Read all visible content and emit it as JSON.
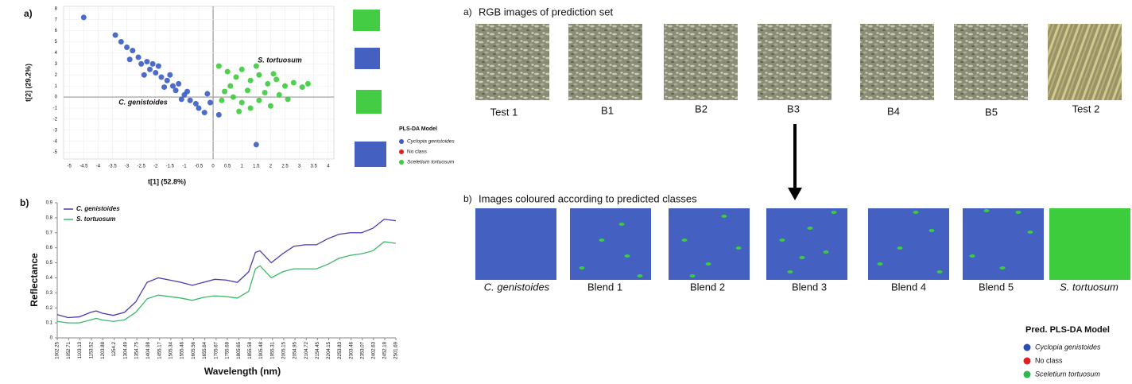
{
  "chart_data": [
    {
      "type": "scatter",
      "panel_label": "a)",
      "xlabel": "t[1] (52.8%)",
      "ylabel": "t[2] (29.2%)",
      "xlim": [
        -5.2,
        4.2
      ],
      "ylim": [
        -5.6,
        8.2
      ],
      "xticks": [
        -5,
        -4.5,
        -4,
        -3.5,
        -3,
        -2.5,
        -2,
        -1.5,
        -1,
        -0.5,
        0,
        0.5,
        1,
        1.5,
        2,
        2.5,
        3,
        3.5,
        4
      ],
      "yticks": [
        -5,
        -4,
        -3,
        -2,
        -1,
        0,
        1,
        2,
        3,
        4,
        5,
        6,
        7,
        8
      ],
      "grid": true,
      "annotations": [
        "C. genistoides",
        "S. tortuosum"
      ],
      "legend_title": "PLS-DA Model",
      "series": [
        {
          "name": "Cyclopia genistoides",
          "color": "#3a5cc4",
          "x": [
            -3.4,
            -3.2,
            -3.0,
            -2.8,
            -2.6,
            -2.5,
            -2.3,
            -2.2,
            -2.0,
            -1.9,
            -1.8,
            -1.6,
            -1.5,
            -1.4,
            -1.3,
            -1.2,
            -1.0,
            -0.9,
            -0.8,
            -0.6,
            -0.5,
            -0.3,
            -0.1,
            0.2,
            -2.9,
            -1.7,
            -2.4,
            -0.2,
            -4.5,
            1.5,
            -1.1,
            -2.1
          ],
          "y": [
            5.6,
            5.0,
            4.5,
            4.2,
            3.6,
            3.0,
            3.2,
            2.5,
            2.2,
            2.8,
            1.8,
            1.5,
            2.0,
            1.0,
            0.6,
            1.2,
            0.2,
            0.5,
            -0.3,
            -0.6,
            -1.0,
            -1.4,
            -0.5,
            -1.6,
            3.4,
            0.9,
            2.0,
            0.3,
            7.2,
            -4.3,
            -0.2,
            3.0
          ]
        },
        {
          "name": "No class",
          "color": "#e02020",
          "x": [],
          "y": []
        },
        {
          "name": "Sceletium tortuosum",
          "color": "#3ccc3c",
          "x": [
            0.2,
            0.5,
            0.8,
            1.0,
            1.3,
            1.6,
            1.9,
            2.2,
            2.5,
            2.8,
            3.1,
            0.4,
            0.7,
            1.0,
            1.3,
            1.6,
            2.0,
            2.3,
            0.6,
            1.2,
            1.8,
            2.6,
            0.9,
            3.3,
            0.3,
            1.5,
            2.1
          ],
          "y": [
            2.8,
            2.3,
            1.8,
            2.5,
            1.5,
            2.0,
            1.2,
            1.6,
            1.0,
            1.3,
            0.9,
            0.5,
            0.0,
            -0.5,
            -1.0,
            -0.3,
            -0.8,
            0.2,
            1.0,
            0.6,
            0.4,
            -0.2,
            -1.3,
            1.2,
            -0.3,
            2.8,
            2.1
          ]
        }
      ]
    },
    {
      "type": "line",
      "panel_label": "b)",
      "xlabel": "Wavelength (nm)",
      "ylabel": "Reflectance",
      "xlim": [
        1002.25,
        2501.69
      ],
      "ylim": [
        0,
        0.9
      ],
      "xticks": [
        1002.25,
        1052.71,
        1103.13,
        1153.52,
        1203.88,
        1254.2,
        1304.49,
        1354.75,
        1404.98,
        1455.17,
        1505.34,
        1555.46,
        1605.56,
        1655.64,
        1705.67,
        1755.68,
        1805.65,
        1855.58,
        1905.48,
        1955.31,
        2005.15,
        2054.95,
        2104.72,
        2154.45,
        2204.15,
        2253.83,
        2303.46,
        2353.07,
        2402.63,
        2452.18,
        2501.69
      ],
      "yticks": [
        0,
        0.1,
        0.2,
        0.3,
        0.4,
        0.5,
        0.6,
        0.7,
        0.8,
        0.9
      ],
      "x": [
        1002.25,
        1050,
        1100,
        1150,
        1175,
        1200,
        1250,
        1300,
        1350,
        1400,
        1450,
        1500,
        1550,
        1600,
        1650,
        1700,
        1750,
        1800,
        1850,
        1880,
        1900,
        1950,
        2000,
        2050,
        2100,
        2150,
        2200,
        2250,
        2300,
        2350,
        2400,
        2450,
        2501.69
      ],
      "series": [
        {
          "name": "C. genistoides",
          "color": "#4a3ab0",
          "values": [
            0.155,
            0.135,
            0.14,
            0.17,
            0.18,
            0.165,
            0.15,
            0.17,
            0.24,
            0.37,
            0.4,
            0.385,
            0.37,
            0.35,
            0.37,
            0.39,
            0.385,
            0.37,
            0.44,
            0.57,
            0.58,
            0.5,
            0.56,
            0.61,
            0.62,
            0.62,
            0.66,
            0.69,
            0.7,
            0.7,
            0.73,
            0.79,
            0.78
          ]
        },
        {
          "name": "S. tortuosum",
          "color": "#3cb86a",
          "values": [
            0.11,
            0.1,
            0.1,
            0.12,
            0.13,
            0.12,
            0.11,
            0.12,
            0.17,
            0.26,
            0.285,
            0.275,
            0.265,
            0.25,
            0.27,
            0.28,
            0.275,
            0.265,
            0.31,
            0.46,
            0.48,
            0.4,
            0.44,
            0.46,
            0.46,
            0.46,
            0.49,
            0.53,
            0.55,
            0.56,
            0.58,
            0.64,
            0.63
          ]
        }
      ]
    }
  ],
  "prediction_panel": {
    "label_a": "a)",
    "title_a": "RGB images of prediction set",
    "rgb_labels": [
      "Test 1",
      "B1",
      "B2",
      "B3",
      "B4",
      "B5",
      "Test 2"
    ],
    "label_b": "b)",
    "title_b": "Images coloured according to predicted classes",
    "class_labels": [
      "C. genistoides",
      "Blend 1",
      "Blend 2",
      "Blend 3",
      "Blend 4",
      "Blend 5",
      "S. tortuosum"
    ],
    "legend": {
      "title": "Pred. PLS-DA Model",
      "items": [
        {
          "name": "Cyclopia genistoides",
          "color": "#2a4fb0"
        },
        {
          "name": "No class",
          "color": "#e02020"
        },
        {
          "name": "Sceletium tortuosum",
          "color": "#2cb84c"
        }
      ]
    }
  }
}
